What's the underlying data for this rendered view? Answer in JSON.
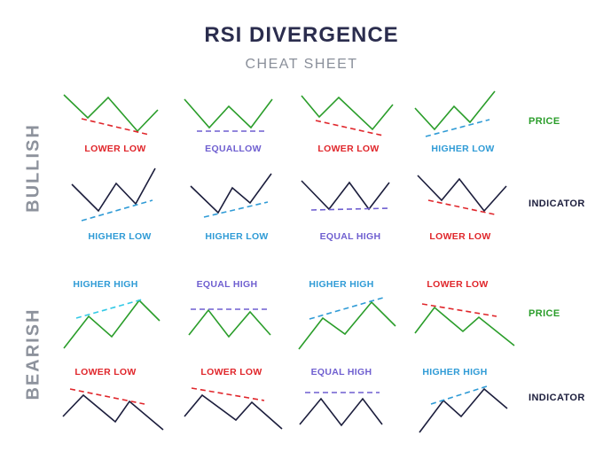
{
  "title": "RSI DIVERGENCE",
  "subtitle": "CHEAT SHEET",
  "sections": {
    "bullish": "BULLISH",
    "bearish": "BEARISH"
  },
  "row_labels": {
    "price": "PRICE",
    "indicator": "INDICATOR"
  },
  "colors": {
    "price_line": "#2a9d2a",
    "indicator_line": "#1b1d3c",
    "red": "#e0262b",
    "blue": "#2f9bd6",
    "purple": "#6f5fd0",
    "cyan": "#33c9e6",
    "title": "#2b2d4e",
    "side": "#8d929c"
  },
  "labels": {
    "bullish_price": [
      "LOWER LOW",
      "EQUALLOW",
      "LOWER LOW",
      "HIGHER LOW"
    ],
    "bullish_indicator": [
      "HIGHER LOW",
      "HIGHER LOW",
      "EQUAL HIGH",
      "LOWER LOW"
    ],
    "bearish_price": [
      "HIGHER HIGH",
      "EQUAL HIGH",
      "HIGHER HIGH",
      "LOWER LOW"
    ],
    "bearish_indicator": [
      "LOWER LOW",
      "LOWER LOW",
      "EQUAL HIGH",
      "HIGHER HIGH"
    ]
  }
}
